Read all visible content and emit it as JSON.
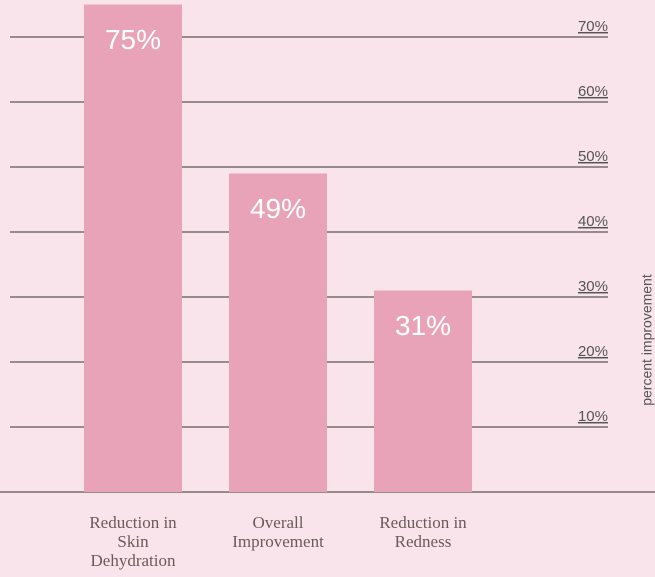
{
  "chart_data": {
    "type": "bar",
    "y_label": "percent improvement",
    "categories": [
      "Reduction in Skin Dehydration",
      "Overall Improvement",
      "Reduction in Redness"
    ],
    "values": [
      75,
      49,
      31
    ],
    "value_labels": [
      "75%",
      "49%",
      "31%"
    ],
    "color": "#e8a3b8",
    "ylim": [
      0,
      75
    ],
    "yticks": [
      {
        "value": 10,
        "label": "10%"
      },
      {
        "value": 20,
        "label": "20%"
      },
      {
        "value": 30,
        "label": "30%"
      },
      {
        "value": 40,
        "label": "40%"
      },
      {
        "value": 50,
        "label": "50%"
      },
      {
        "value": 60,
        "label": "60%"
      },
      {
        "value": 70,
        "label": "70%"
      }
    ],
    "grid": true
  }
}
